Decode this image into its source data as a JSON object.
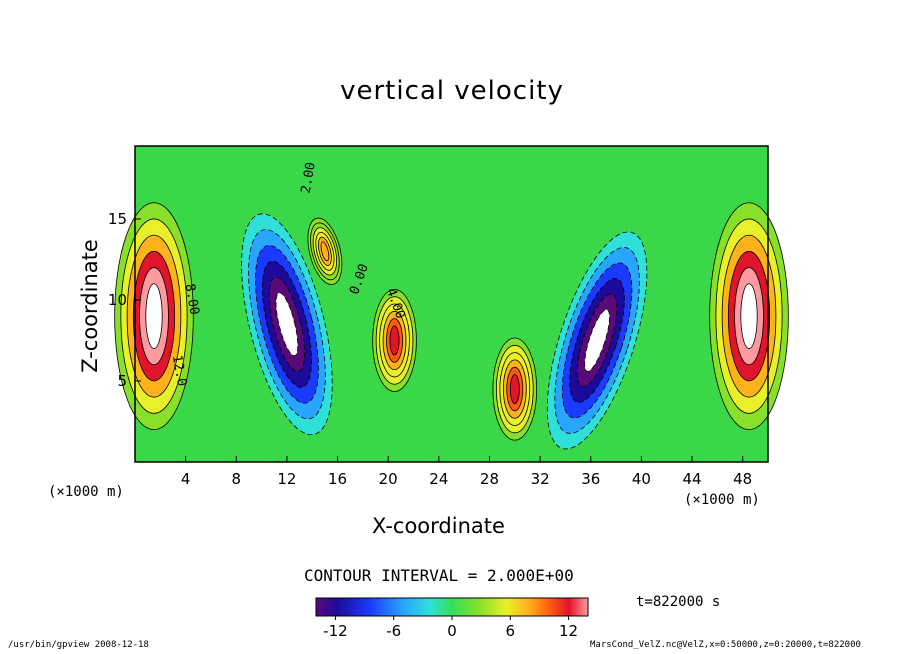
{
  "title": "vertical velocity",
  "chart_data": {
    "type": "heatmap",
    "title": "vertical velocity",
    "xlabel": "X-coordinate",
    "ylabel": "Z-coordinate",
    "x_unit": "(×1000 m)",
    "z_unit": "(×1000 m)",
    "xlim": [
      0,
      50
    ],
    "ylim": [
      0,
      19.5
    ],
    "x_ticks": [
      4,
      8,
      12,
      16,
      20,
      24,
      28,
      32,
      36,
      40,
      44,
      48
    ],
    "y_ticks": [
      5,
      10,
      15
    ],
    "colorbar": {
      "range": [
        -14,
        14
      ],
      "ticks": [
        -12,
        -6,
        0,
        6,
        12
      ]
    },
    "contour_interval": "CONTOUR INTERVAL = 2.000E+00",
    "time": "t=822000 s",
    "contour_labels": [
      "0.00",
      "8.00",
      "12.0",
      "4.00",
      "2.00"
    ],
    "features": [
      {
        "kind": "updraft",
        "x": 1.5,
        "z": 9,
        "peak": 16
      },
      {
        "kind": "downdraft",
        "x": 12,
        "z": 8.5,
        "peak": -16
      },
      {
        "kind": "updraft",
        "x": 20.5,
        "z": 7.5,
        "peak": 12
      },
      {
        "kind": "updraft",
        "x": 15,
        "z": 13,
        "peak": 8
      },
      {
        "kind": "updraft",
        "x": 30,
        "z": 4.5,
        "peak": 12
      },
      {
        "kind": "downdraft",
        "x": 36.5,
        "z": 7.5,
        "peak": -16
      },
      {
        "kind": "updraft",
        "x": 48.5,
        "z": 9,
        "peak": 16
      }
    ]
  },
  "footer": {
    "left": "/usr/bin/gpview  2008-12-18",
    "right": "MarsCond_VelZ.nc@VelZ,x=0:50000,z=0:20000,t=822000"
  }
}
